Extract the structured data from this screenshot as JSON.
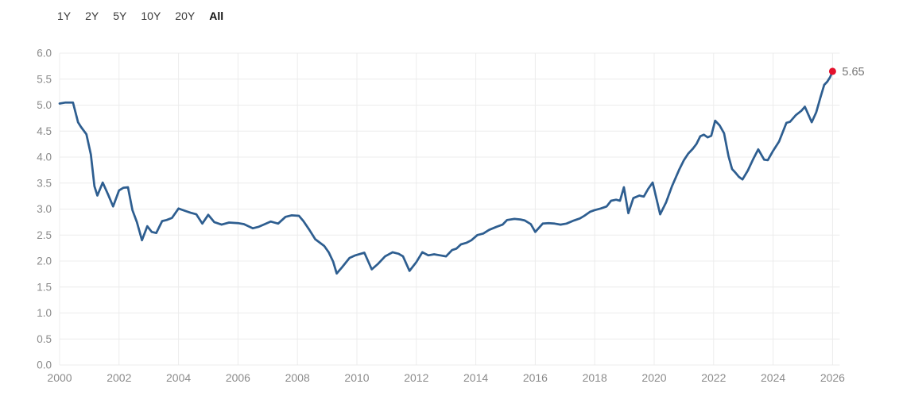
{
  "tabs": {
    "items": [
      {
        "label": "1Y",
        "active": false
      },
      {
        "label": "2Y",
        "active": false
      },
      {
        "label": "5Y",
        "active": false
      },
      {
        "label": "10Y",
        "active": false
      },
      {
        "label": "20Y",
        "active": false
      },
      {
        "label": "All",
        "active": true
      }
    ]
  },
  "chart_data": {
    "type": "line",
    "title": "",
    "xlabel": "",
    "ylabel": "",
    "xlim": [
      2000,
      2026
    ],
    "ylim": [
      0.0,
      6.0
    ],
    "grid": true,
    "legend": "none",
    "colors": {
      "grid": "#ececec",
      "tick_label": "#8b8b8b",
      "background": "#ffffff"
    },
    "x_ticks": [
      2000,
      2002,
      2004,
      2006,
      2008,
      2010,
      2012,
      2014,
      2016,
      2018,
      2020,
      2022,
      2024,
      2026
    ],
    "y_ticks": [
      {
        "value": 0.0,
        "label": "0.0"
      },
      {
        "value": 0.5,
        "label": "0.5"
      },
      {
        "value": 1.0,
        "label": "1.0"
      },
      {
        "value": 1.5,
        "label": "1.5"
      },
      {
        "value": 2.0,
        "label": "2.0"
      },
      {
        "value": 2.5,
        "label": "2.5"
      },
      {
        "value": 3.0,
        "label": "3.0"
      },
      {
        "value": 3.5,
        "label": "3.5"
      },
      {
        "value": 4.0,
        "label": "4.0"
      },
      {
        "value": 4.5,
        "label": "4.5"
      },
      {
        "value": 5.0,
        "label": "5.0"
      },
      {
        "value": 5.5,
        "label": "5.5"
      },
      {
        "value": 6.0,
        "label": "6.0"
      }
    ],
    "series": [
      {
        "name": "value",
        "color": "#2e5e90",
        "points": [
          [
            2000.0,
            5.03
          ],
          [
            2000.2,
            5.05
          ],
          [
            2000.45,
            5.05
          ],
          [
            2000.62,
            4.67
          ],
          [
            2000.72,
            4.58
          ],
          [
            2000.9,
            4.44
          ],
          [
            2001.05,
            4.05
          ],
          [
            2001.17,
            3.44
          ],
          [
            2001.27,
            3.26
          ],
          [
            2001.45,
            3.51
          ],
          [
            2001.63,
            3.28
          ],
          [
            2001.8,
            3.05
          ],
          [
            2002.0,
            3.36
          ],
          [
            2002.15,
            3.41
          ],
          [
            2002.3,
            3.42
          ],
          [
            2002.45,
            2.98
          ],
          [
            2002.6,
            2.75
          ],
          [
            2002.77,
            2.4
          ],
          [
            2002.95,
            2.67
          ],
          [
            2003.1,
            2.56
          ],
          [
            2003.25,
            2.54
          ],
          [
            2003.45,
            2.77
          ],
          [
            2003.6,
            2.79
          ],
          [
            2003.78,
            2.83
          ],
          [
            2004.0,
            3.01
          ],
          [
            2004.2,
            2.97
          ],
          [
            2004.4,
            2.93
          ],
          [
            2004.6,
            2.9
          ],
          [
            2004.8,
            2.72
          ],
          [
            2005.0,
            2.89
          ],
          [
            2005.2,
            2.75
          ],
          [
            2005.45,
            2.7
          ],
          [
            2005.7,
            2.74
          ],
          [
            2006.0,
            2.73
          ],
          [
            2006.2,
            2.71
          ],
          [
            2006.5,
            2.63
          ],
          [
            2006.7,
            2.66
          ],
          [
            2006.9,
            2.71
          ],
          [
            2007.1,
            2.76
          ],
          [
            2007.35,
            2.72
          ],
          [
            2007.6,
            2.85
          ],
          [
            2007.8,
            2.88
          ],
          [
            2008.05,
            2.87
          ],
          [
            2008.2,
            2.77
          ],
          [
            2008.4,
            2.6
          ],
          [
            2008.6,
            2.42
          ],
          [
            2008.9,
            2.29
          ],
          [
            2009.05,
            2.17
          ],
          [
            2009.2,
            1.99
          ],
          [
            2009.32,
            1.76
          ],
          [
            2009.5,
            1.88
          ],
          [
            2009.75,
            2.06
          ],
          [
            2009.95,
            2.11
          ],
          [
            2010.25,
            2.16
          ],
          [
            2010.5,
            1.84
          ],
          [
            2010.7,
            1.94
          ],
          [
            2010.95,
            2.09
          ],
          [
            2011.2,
            2.17
          ],
          [
            2011.4,
            2.14
          ],
          [
            2011.55,
            2.09
          ],
          [
            2011.77,
            1.81
          ],
          [
            2012.0,
            1.98
          ],
          [
            2012.2,
            2.17
          ],
          [
            2012.4,
            2.11
          ],
          [
            2012.6,
            2.13
          ],
          [
            2012.8,
            2.11
          ],
          [
            2013.0,
            2.09
          ],
          [
            2013.2,
            2.21
          ],
          [
            2013.35,
            2.24
          ],
          [
            2013.5,
            2.32
          ],
          [
            2013.68,
            2.35
          ],
          [
            2013.85,
            2.4
          ],
          [
            2014.05,
            2.5
          ],
          [
            2014.25,
            2.53
          ],
          [
            2014.45,
            2.6
          ],
          [
            2014.7,
            2.66
          ],
          [
            2014.9,
            2.7
          ],
          [
            2015.05,
            2.79
          ],
          [
            2015.3,
            2.81
          ],
          [
            2015.5,
            2.8
          ],
          [
            2015.65,
            2.78
          ],
          [
            2015.85,
            2.71
          ],
          [
            2016.0,
            2.56
          ],
          [
            2016.25,
            2.72
          ],
          [
            2016.45,
            2.73
          ],
          [
            2016.65,
            2.72
          ],
          [
            2016.85,
            2.7
          ],
          [
            2017.05,
            2.72
          ],
          [
            2017.3,
            2.78
          ],
          [
            2017.5,
            2.82
          ],
          [
            2017.65,
            2.87
          ],
          [
            2017.85,
            2.95
          ],
          [
            2018.0,
            2.98
          ],
          [
            2018.2,
            3.01
          ],
          [
            2018.4,
            3.05
          ],
          [
            2018.55,
            3.16
          ],
          [
            2018.72,
            3.18
          ],
          [
            2018.85,
            3.16
          ],
          [
            2018.98,
            3.42
          ],
          [
            2019.13,
            2.92
          ],
          [
            2019.3,
            3.21
          ],
          [
            2019.5,
            3.26
          ],
          [
            2019.65,
            3.24
          ],
          [
            2019.8,
            3.39
          ],
          [
            2019.95,
            3.51
          ],
          [
            2020.2,
            2.9
          ],
          [
            2020.4,
            3.13
          ],
          [
            2020.6,
            3.44
          ],
          [
            2020.85,
            3.77
          ],
          [
            2021.0,
            3.94
          ],
          [
            2021.15,
            4.07
          ],
          [
            2021.3,
            4.16
          ],
          [
            2021.42,
            4.25
          ],
          [
            2021.55,
            4.4
          ],
          [
            2021.67,
            4.43
          ],
          [
            2021.8,
            4.38
          ],
          [
            2021.92,
            4.41
          ],
          [
            2022.05,
            4.7
          ],
          [
            2022.2,
            4.61
          ],
          [
            2022.35,
            4.46
          ],
          [
            2022.5,
            4.02
          ],
          [
            2022.62,
            3.77
          ],
          [
            2022.72,
            3.71
          ],
          [
            2022.85,
            3.62
          ],
          [
            2022.97,
            3.57
          ],
          [
            2023.15,
            3.74
          ],
          [
            2023.32,
            3.95
          ],
          [
            2023.5,
            4.15
          ],
          [
            2023.7,
            3.95
          ],
          [
            2023.82,
            3.94
          ],
          [
            2024.0,
            4.12
          ],
          [
            2024.2,
            4.3
          ],
          [
            2024.45,
            4.66
          ],
          [
            2024.57,
            4.68
          ],
          [
            2024.77,
            4.81
          ],
          [
            2024.95,
            4.89
          ],
          [
            2025.07,
            4.97
          ],
          [
            2025.3,
            4.67
          ],
          [
            2025.45,
            4.86
          ],
          [
            2025.6,
            5.16
          ],
          [
            2025.72,
            5.39
          ],
          [
            2025.82,
            5.45
          ],
          [
            2025.92,
            5.54
          ],
          [
            2026.0,
            5.65
          ]
        ]
      }
    ],
    "end_marker": {
      "x": 2026.0,
      "y": 5.65,
      "label": "5.65",
      "color": "#e3112c",
      "label_color": "#757575"
    }
  }
}
